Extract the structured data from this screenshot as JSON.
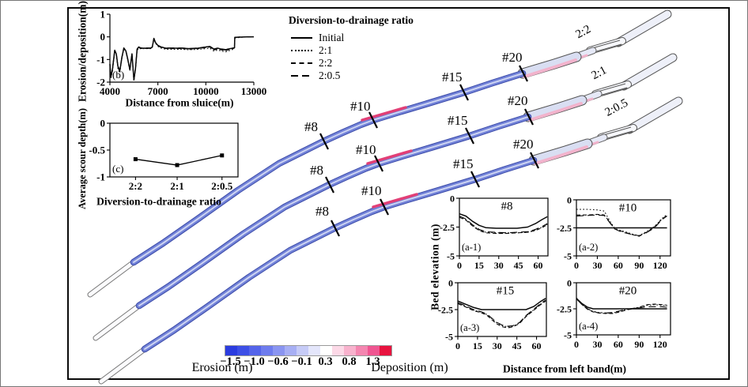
{
  "panel_b": {
    "tag": "(b)",
    "ylabel": "Erosion/deposition(m)",
    "xlabel": "Distance from sluice(m)",
    "yticks": [
      "1",
      "0",
      "-1",
      "-2"
    ],
    "xticks": [
      "4000",
      "7000",
      "10000",
      "13000"
    ]
  },
  "legend": {
    "title": "Diversion-to-drainage ratio",
    "items": [
      {
        "label": "Initial",
        "style": "solid"
      },
      {
        "label": "2:1",
        "style": "dotted"
      },
      {
        "label": "2:2",
        "style": "dashed"
      },
      {
        "label": "2:0.5",
        "style": "longdash"
      }
    ]
  },
  "panel_c": {
    "tag": "(c)",
    "ylabel": "Average scour depth(m)",
    "xlabel": "Diversion-to-drainage ratio",
    "yticks": [
      "0",
      "-0.5",
      "-1"
    ],
    "xticks": [
      "2:2",
      "2:1",
      "2:0.5"
    ]
  },
  "channels": [
    {
      "ratio": "2:2",
      "sections": [
        "#8",
        "#10",
        "#15",
        "#20"
      ]
    },
    {
      "ratio": "2:1",
      "sections": [
        "#8",
        "#10",
        "#15",
        "#20"
      ]
    },
    {
      "ratio": "2:0.5",
      "sections": [
        "#8",
        "#10",
        "#15",
        "#20"
      ]
    }
  ],
  "colorbar": {
    "ticks": [
      "−1.5",
      "−1.0",
      "−0.6",
      "−0.1",
      "0.3",
      "0.8",
      "1.3"
    ],
    "left_label": "Erosion (m)",
    "right_label": "Deposition (m)",
    "colors": [
      "#2b3cdf",
      "#3d4fe6",
      "#5464ea",
      "#6e7cee",
      "#8a95f1",
      "#a7aff4",
      "#c6cbf7",
      "#e4e6fb",
      "#ffffff",
      "#fcd9e7",
      "#f8b2cd",
      "#f486b0",
      "#ef5591",
      "#e8133f"
    ]
  },
  "sections_panel": {
    "ylabel": "Bed elevation (m)",
    "xlabel": "Distance from left band(m)",
    "plots": [
      {
        "tag": "(a-1)",
        "title": "#8",
        "yticks": [
          "0",
          "-2.5",
          "-5"
        ],
        "xticks": [
          "0",
          "15",
          "30",
          "45",
          "60"
        ]
      },
      {
        "tag": "(a-2)",
        "title": "#10",
        "yticks": [
          "0",
          "-2.5",
          "-5"
        ],
        "xticks": [
          "0",
          "30",
          "60",
          "90",
          "120"
        ]
      },
      {
        "tag": "(a-3)",
        "title": "#15",
        "yticks": [
          "0",
          "-2.5",
          "-5"
        ],
        "xticks": [
          "0",
          "15",
          "30",
          "45",
          "60"
        ]
      },
      {
        "tag": "(a-4)",
        "title": "#20",
        "yticks": [
          "0",
          "-2.5",
          "-5"
        ],
        "xticks": [
          "0",
          "30",
          "60",
          "90",
          "120"
        ]
      }
    ]
  },
  "chart_data": [
    {
      "type": "line",
      "id": "b",
      "xlabel": "Distance from sluice(m)",
      "ylabel": "Erosion/deposition(m)",
      "xlim": [
        4000,
        13000
      ],
      "ylim": [
        -2,
        1
      ],
      "x": [
        4000,
        4060,
        4150,
        4300,
        4400,
        4500,
        4620,
        4750,
        4870,
        5000,
        5120,
        5250,
        5380,
        5500,
        5600,
        5700,
        5800,
        5950,
        6100,
        6300,
        6550,
        6650,
        6750,
        6850,
        7000,
        7200,
        7500,
        8000,
        8500,
        9000,
        9500,
        10000,
        10250,
        10500,
        10750,
        11000,
        11250,
        11500,
        11700,
        11790,
        11810,
        12200,
        12600,
        13000
      ],
      "series": [
        {
          "name": "Initial",
          "dash": "solid",
          "values": [
            -1.2,
            -1.75,
            -1.5,
            -0.6,
            -0.75,
            -1.3,
            -1.5,
            -0.9,
            -0.5,
            -0.62,
            -1.0,
            -1.45,
            -0.75,
            -1.9,
            -1.4,
            -0.55,
            -0.45,
            -0.5,
            -0.5,
            -0.5,
            -0.5,
            -0.45,
            -0.07,
            -0.25,
            -0.38,
            -0.45,
            -0.5,
            -0.5,
            -0.5,
            -0.52,
            -0.5,
            -0.45,
            -0.42,
            -0.55,
            -0.5,
            -0.55,
            -0.58,
            -0.52,
            -0.5,
            -0.48,
            -0.02,
            -0.01,
            0,
            0
          ]
        },
        {
          "name": "2:1",
          "dash": "dotted",
          "values": [
            -1.3,
            -1.85,
            -1.55,
            -0.65,
            -0.8,
            -1.4,
            -1.6,
            -0.95,
            -0.55,
            -0.65,
            -1.05,
            -1.5,
            -0.8,
            -1.95,
            -1.45,
            -0.6,
            -0.5,
            -0.53,
            -0.52,
            -0.52,
            -0.52,
            -0.47,
            -0.1,
            -0.28,
            -0.42,
            -0.5,
            -0.55,
            -0.55,
            -0.55,
            -0.57,
            -0.55,
            -0.52,
            -0.5,
            -0.63,
            -0.58,
            -0.63,
            -0.66,
            -0.6,
            -0.55,
            -0.5,
            -0.05,
            -0.02,
            0,
            0
          ]
        },
        {
          "name": "2:2",
          "dash": "dashed",
          "values": [
            -1.25,
            -1.8,
            -1.5,
            -0.62,
            -0.78,
            -1.35,
            -1.55,
            -0.92,
            -0.52,
            -0.63,
            -1.02,
            -1.47,
            -0.77,
            -1.92,
            -1.42,
            -0.57,
            -0.47,
            -0.51,
            -0.51,
            -0.51,
            -0.51,
            -0.46,
            -0.08,
            -0.26,
            -0.4,
            -0.47,
            -0.52,
            -0.52,
            -0.52,
            -0.54,
            -0.52,
            -0.48,
            -0.45,
            -0.58,
            -0.53,
            -0.58,
            -0.61,
            -0.55,
            -0.52,
            -0.49,
            -0.03,
            -0.01,
            0,
            0
          ]
        },
        {
          "name": "2:0.5",
          "dash": "longdash",
          "values": [
            -1.2,
            -1.72,
            -1.45,
            -0.58,
            -0.73,
            -1.28,
            -1.48,
            -0.88,
            -0.48,
            -0.6,
            -0.98,
            -1.43,
            -0.73,
            -1.88,
            -1.38,
            -0.53,
            -0.44,
            -0.49,
            -0.49,
            -0.49,
            -0.49,
            -0.44,
            -0.06,
            -0.24,
            -0.37,
            -0.44,
            -0.49,
            -0.49,
            -0.49,
            -0.51,
            -0.49,
            -0.44,
            -0.41,
            -0.53,
            -0.49,
            -0.53,
            -0.56,
            -0.5,
            -0.49,
            -0.47,
            -0.02,
            0,
            0,
            0
          ]
        }
      ]
    },
    {
      "type": "line",
      "id": "c",
      "xlabel": "Diversion-to-drainage ratio",
      "ylabel": "Average scour depth(m)",
      "categories": [
        "2:2",
        "2:1",
        "2:0.5"
      ],
      "values": [
        -0.67,
        -0.78,
        -0.6
      ],
      "ylim": [
        -1,
        0
      ]
    },
    {
      "type": "line",
      "id": "a-1",
      "title": "#8",
      "xlim": [
        0,
        67.5
      ],
      "ylim": [
        -5,
        0
      ],
      "x": [
        0,
        5,
        10,
        15,
        20,
        28,
        36,
        44,
        52,
        58,
        63,
        67
      ],
      "series": [
        {
          "name": "Initial",
          "dash": "solid",
          "values": [
            -1.35,
            -1.55,
            -2.0,
            -2.35,
            -2.55,
            -2.6,
            -2.6,
            -2.6,
            -2.5,
            -2.2,
            -1.85,
            -1.6
          ]
        },
        {
          "name": "2:1",
          "dash": "dotted",
          "values": [
            -1.6,
            -1.85,
            -2.35,
            -2.75,
            -2.95,
            -3.0,
            -3.0,
            -3.0,
            -2.95,
            -2.75,
            -2.5,
            -2.25
          ]
        },
        {
          "name": "2:2",
          "dash": "dashed",
          "values": [
            -1.65,
            -1.9,
            -2.4,
            -2.8,
            -3.0,
            -3.05,
            -3.05,
            -3.0,
            -2.95,
            -2.8,
            -2.55,
            -2.3
          ]
        },
        {
          "name": "2:0.5",
          "dash": "longdash",
          "values": [
            -1.55,
            -1.8,
            -2.3,
            -2.7,
            -2.9,
            -2.95,
            -3.0,
            -2.95,
            -2.9,
            -2.7,
            -2.45,
            -2.2
          ]
        }
      ]
    },
    {
      "type": "line",
      "id": "a-2",
      "title": "#10",
      "xlim": [
        0,
        135
      ],
      "ylim": [
        -5,
        0
      ],
      "x": [
        0,
        15,
        30,
        40,
        48,
        55,
        62,
        70,
        80,
        90,
        100,
        108,
        115,
        122,
        130
      ],
      "series": [
        {
          "name": "Initial",
          "dash": "solid",
          "values": [
            -2.5,
            -2.5,
            -2.5,
            -2.5,
            -2.5,
            -2.5,
            -2.5,
            -2.5,
            -2.5,
            -2.5,
            -2.5,
            -2.5,
            -2.5,
            -2.5,
            -2.5
          ]
        },
        {
          "name": "2:1",
          "dash": "dotted",
          "values": [
            -0.85,
            -0.85,
            -0.9,
            -1.0,
            -1.9,
            -2.55,
            -2.7,
            -2.85,
            -3.05,
            -3.2,
            -2.85,
            -2.55,
            -2.2,
            -1.7,
            -1.3
          ]
        },
        {
          "name": "2:2",
          "dash": "dashed",
          "values": [
            -1.35,
            -1.35,
            -1.3,
            -1.35,
            -2.0,
            -2.6,
            -2.75,
            -2.9,
            -3.1,
            -3.25,
            -2.9,
            -2.6,
            -2.25,
            -1.75,
            -1.4
          ]
        },
        {
          "name": "2:0.5",
          "dash": "longdash",
          "values": [
            -1.45,
            -1.4,
            -1.35,
            -1.4,
            -2.05,
            -2.6,
            -2.8,
            -2.95,
            -3.1,
            -3.2,
            -2.95,
            -2.65,
            -2.3,
            -1.8,
            -1.45
          ]
        }
      ]
    },
    {
      "type": "line",
      "id": "a-3",
      "title": "#15",
      "xlim": [
        0,
        67.5
      ],
      "ylim": [
        -5,
        0
      ],
      "x": [
        0,
        5,
        12,
        18,
        22,
        26,
        30,
        34,
        38,
        42,
        47,
        52,
        58,
        63,
        67
      ],
      "series": [
        {
          "name": "Initial",
          "dash": "solid",
          "values": [
            -1.7,
            -1.95,
            -2.3,
            -2.5,
            -2.5,
            -2.5,
            -2.5,
            -2.5,
            -2.5,
            -2.5,
            -2.5,
            -2.5,
            -2.2,
            -1.75,
            -1.45
          ]
        },
        {
          "name": "2:1",
          "dash": "dotted",
          "values": [
            -1.9,
            -2.15,
            -2.55,
            -2.75,
            -2.95,
            -3.35,
            -3.75,
            -4.0,
            -4.1,
            -4.05,
            -3.75,
            -3.1,
            -2.5,
            -2.0,
            -1.65
          ]
        },
        {
          "name": "2:2",
          "dash": "dashed",
          "values": [
            -1.95,
            -2.2,
            -2.6,
            -2.8,
            -3.0,
            -3.45,
            -3.85,
            -4.1,
            -4.2,
            -4.1,
            -3.8,
            -3.15,
            -2.55,
            -2.05,
            -1.7
          ]
        },
        {
          "name": "2:0.5",
          "dash": "longdash",
          "values": [
            -1.85,
            -2.1,
            -2.5,
            -2.7,
            -2.9,
            -3.3,
            -3.7,
            -3.95,
            -4.05,
            -4.0,
            -3.7,
            -3.05,
            -2.45,
            -1.95,
            -1.6
          ]
        }
      ]
    },
    {
      "type": "line",
      "id": "a-4",
      "title": "#20",
      "xlim": [
        0,
        135
      ],
      "ylim": [
        -5,
        0
      ],
      "x": [
        0,
        8,
        16,
        24,
        32,
        42,
        52,
        62,
        72,
        82,
        92,
        102,
        112,
        122,
        130
      ],
      "series": [
        {
          "name": "Initial",
          "dash": "solid",
          "values": [
            -1.5,
            -2.0,
            -2.35,
            -2.5,
            -2.5,
            -2.5,
            -2.5,
            -2.5,
            -2.5,
            -2.5,
            -2.5,
            -2.5,
            -2.5,
            -2.5,
            -2.5
          ]
        },
        {
          "name": "2:1",
          "dash": "dotted",
          "values": [
            -1.45,
            -2.05,
            -2.5,
            -2.75,
            -2.85,
            -2.9,
            -2.9,
            -2.75,
            -2.55,
            -2.45,
            -2.35,
            -2.15,
            -2.1,
            -2.15,
            -2.2
          ]
        },
        {
          "name": "2:2",
          "dash": "dashed",
          "values": [
            -1.5,
            -2.1,
            -2.55,
            -2.8,
            -2.9,
            -2.95,
            -2.95,
            -2.8,
            -2.6,
            -2.5,
            -2.3,
            -2.1,
            -2.05,
            -2.1,
            -2.15
          ]
        },
        {
          "name": "2:0.5",
          "dash": "longdash",
          "values": [
            -1.55,
            -2.1,
            -2.5,
            -2.75,
            -2.9,
            -2.9,
            -2.85,
            -2.7,
            -2.55,
            -2.45,
            -2.4,
            -2.3,
            -2.3,
            -2.3,
            -2.35
          ]
        }
      ]
    },
    {
      "type": "heatmap",
      "id": "channel-map",
      "channels": [
        "2:2",
        "2:1",
        "2:0.5"
      ],
      "cross_sections": [
        "#8",
        "#10",
        "#15",
        "#20"
      ],
      "colorbar_boundaries": [
        -1.5,
        -1.0,
        -0.6,
        -0.1,
        0.3,
        0.8,
        1.3
      ]
    }
  ]
}
